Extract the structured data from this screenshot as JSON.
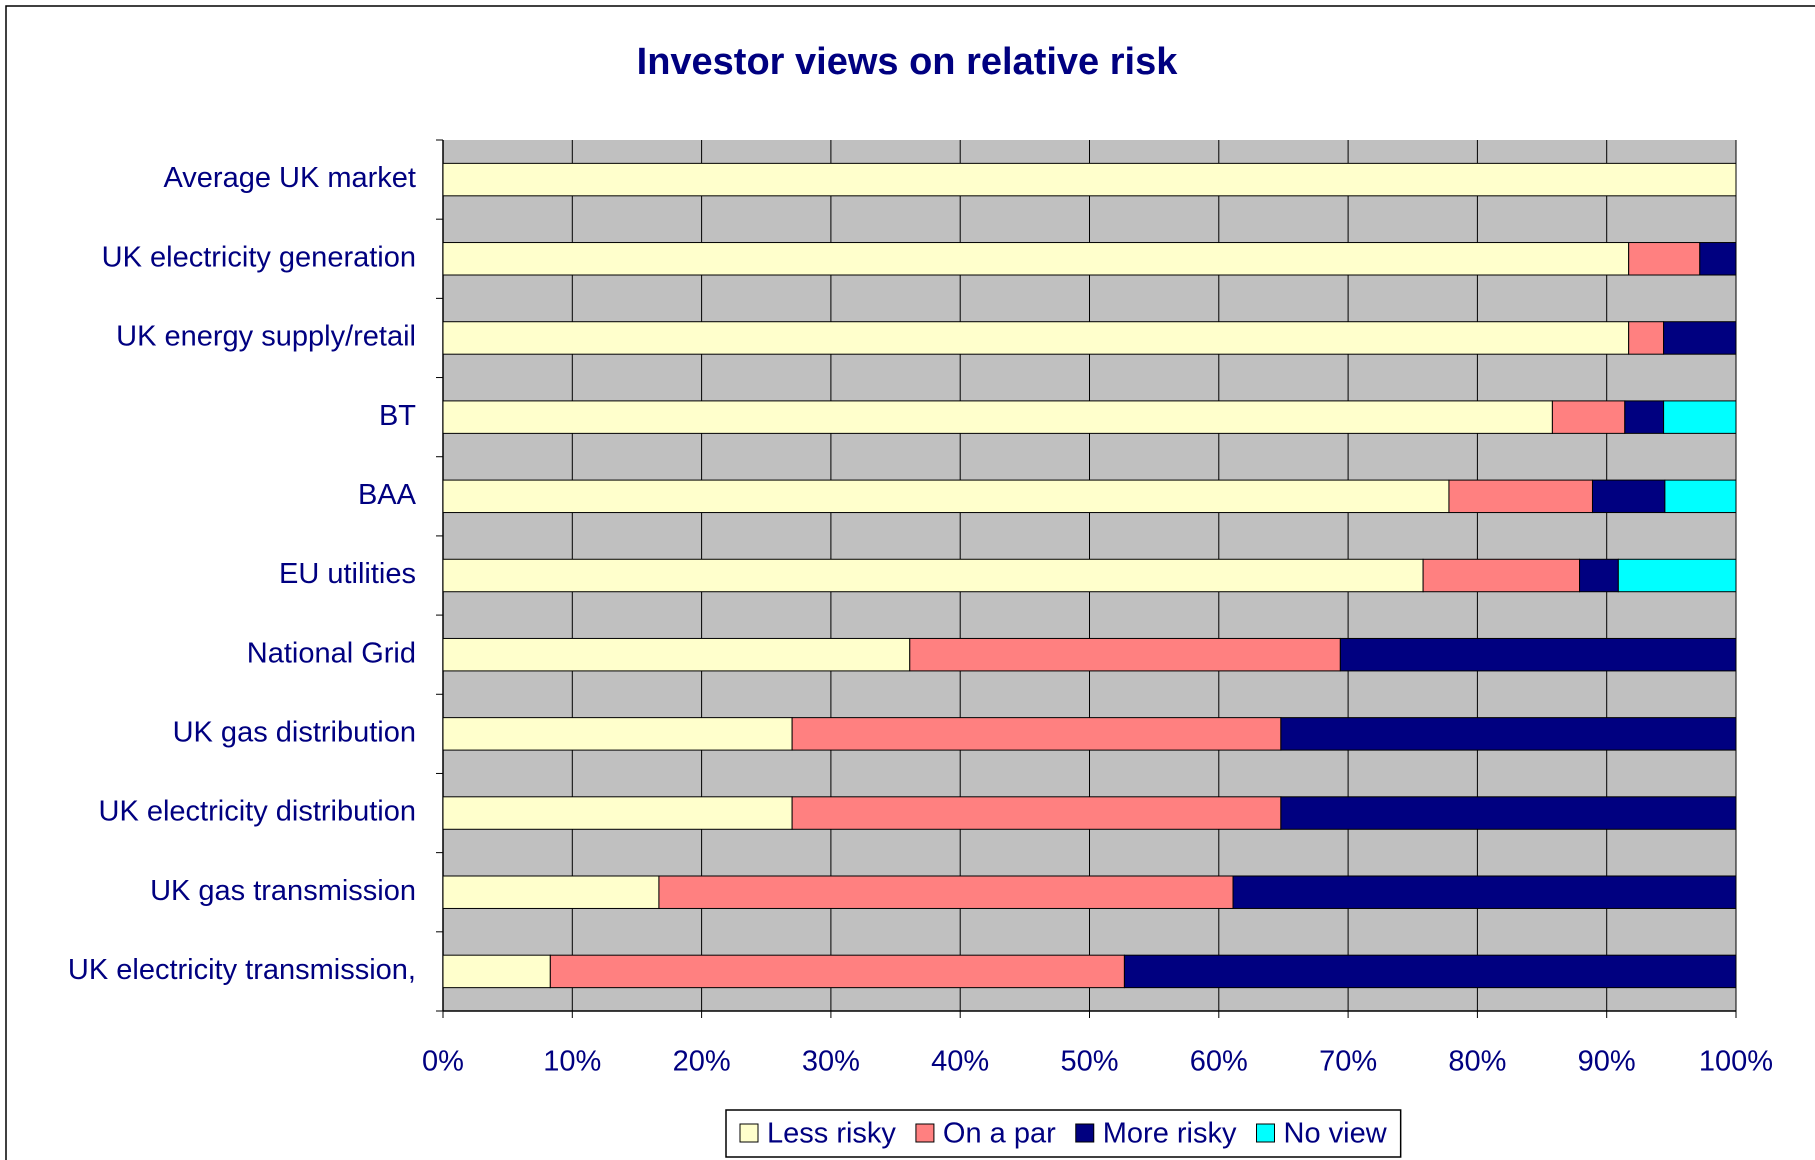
{
  "chart_data": {
    "type": "stacked-bar-horizontal",
    "title": "Investor views on relative risk",
    "categories": [
      "Average UK market",
      "UK electricity generation",
      "UK energy supply/retail",
      "BT",
      "BAA",
      "EU utilities",
      "National Grid",
      "UK gas distribution",
      "UK electricity distribution",
      "UK gas transmission",
      "UK electricity transmission,"
    ],
    "series": [
      {
        "name": "Less risky",
        "color": "#ffffcc",
        "values": [
          100,
          91.7,
          91.7,
          85.8,
          77.8,
          75.8,
          36.1,
          27.0,
          27.0,
          16.7,
          8.3
        ]
      },
      {
        "name": "On a par",
        "color": "#ff8080",
        "values": [
          0,
          5.5,
          2.7,
          5.6,
          11.1,
          12.1,
          33.3,
          37.8,
          37.8,
          44.4,
          44.4
        ]
      },
      {
        "name": "More risky",
        "color": "#000080",
        "values": [
          0,
          2.8,
          5.6,
          3.0,
          5.6,
          3.0,
          30.6,
          35.2,
          35.2,
          38.9,
          47.3
        ]
      },
      {
        "name": "No view",
        "color": "#00ffff",
        "values": [
          0,
          0,
          0,
          5.6,
          5.5,
          9.1,
          0,
          0,
          0,
          0,
          0
        ]
      }
    ],
    "xlim": [
      0,
      100
    ],
    "xticks": [
      {
        "value": 0,
        "label": "0%"
      },
      {
        "value": 10,
        "label": "10%"
      },
      {
        "value": 20,
        "label": "20%"
      },
      {
        "value": 30,
        "label": "30%"
      },
      {
        "value": 40,
        "label": "40%"
      },
      {
        "value": 50,
        "label": "50%"
      },
      {
        "value": 60,
        "label": "60%"
      },
      {
        "value": 70,
        "label": "70%"
      },
      {
        "value": 80,
        "label": "80%"
      },
      {
        "value": 90,
        "label": "90%"
      },
      {
        "value": 100,
        "label": "100%"
      }
    ],
    "grid": true,
    "legend": "bottom"
  }
}
